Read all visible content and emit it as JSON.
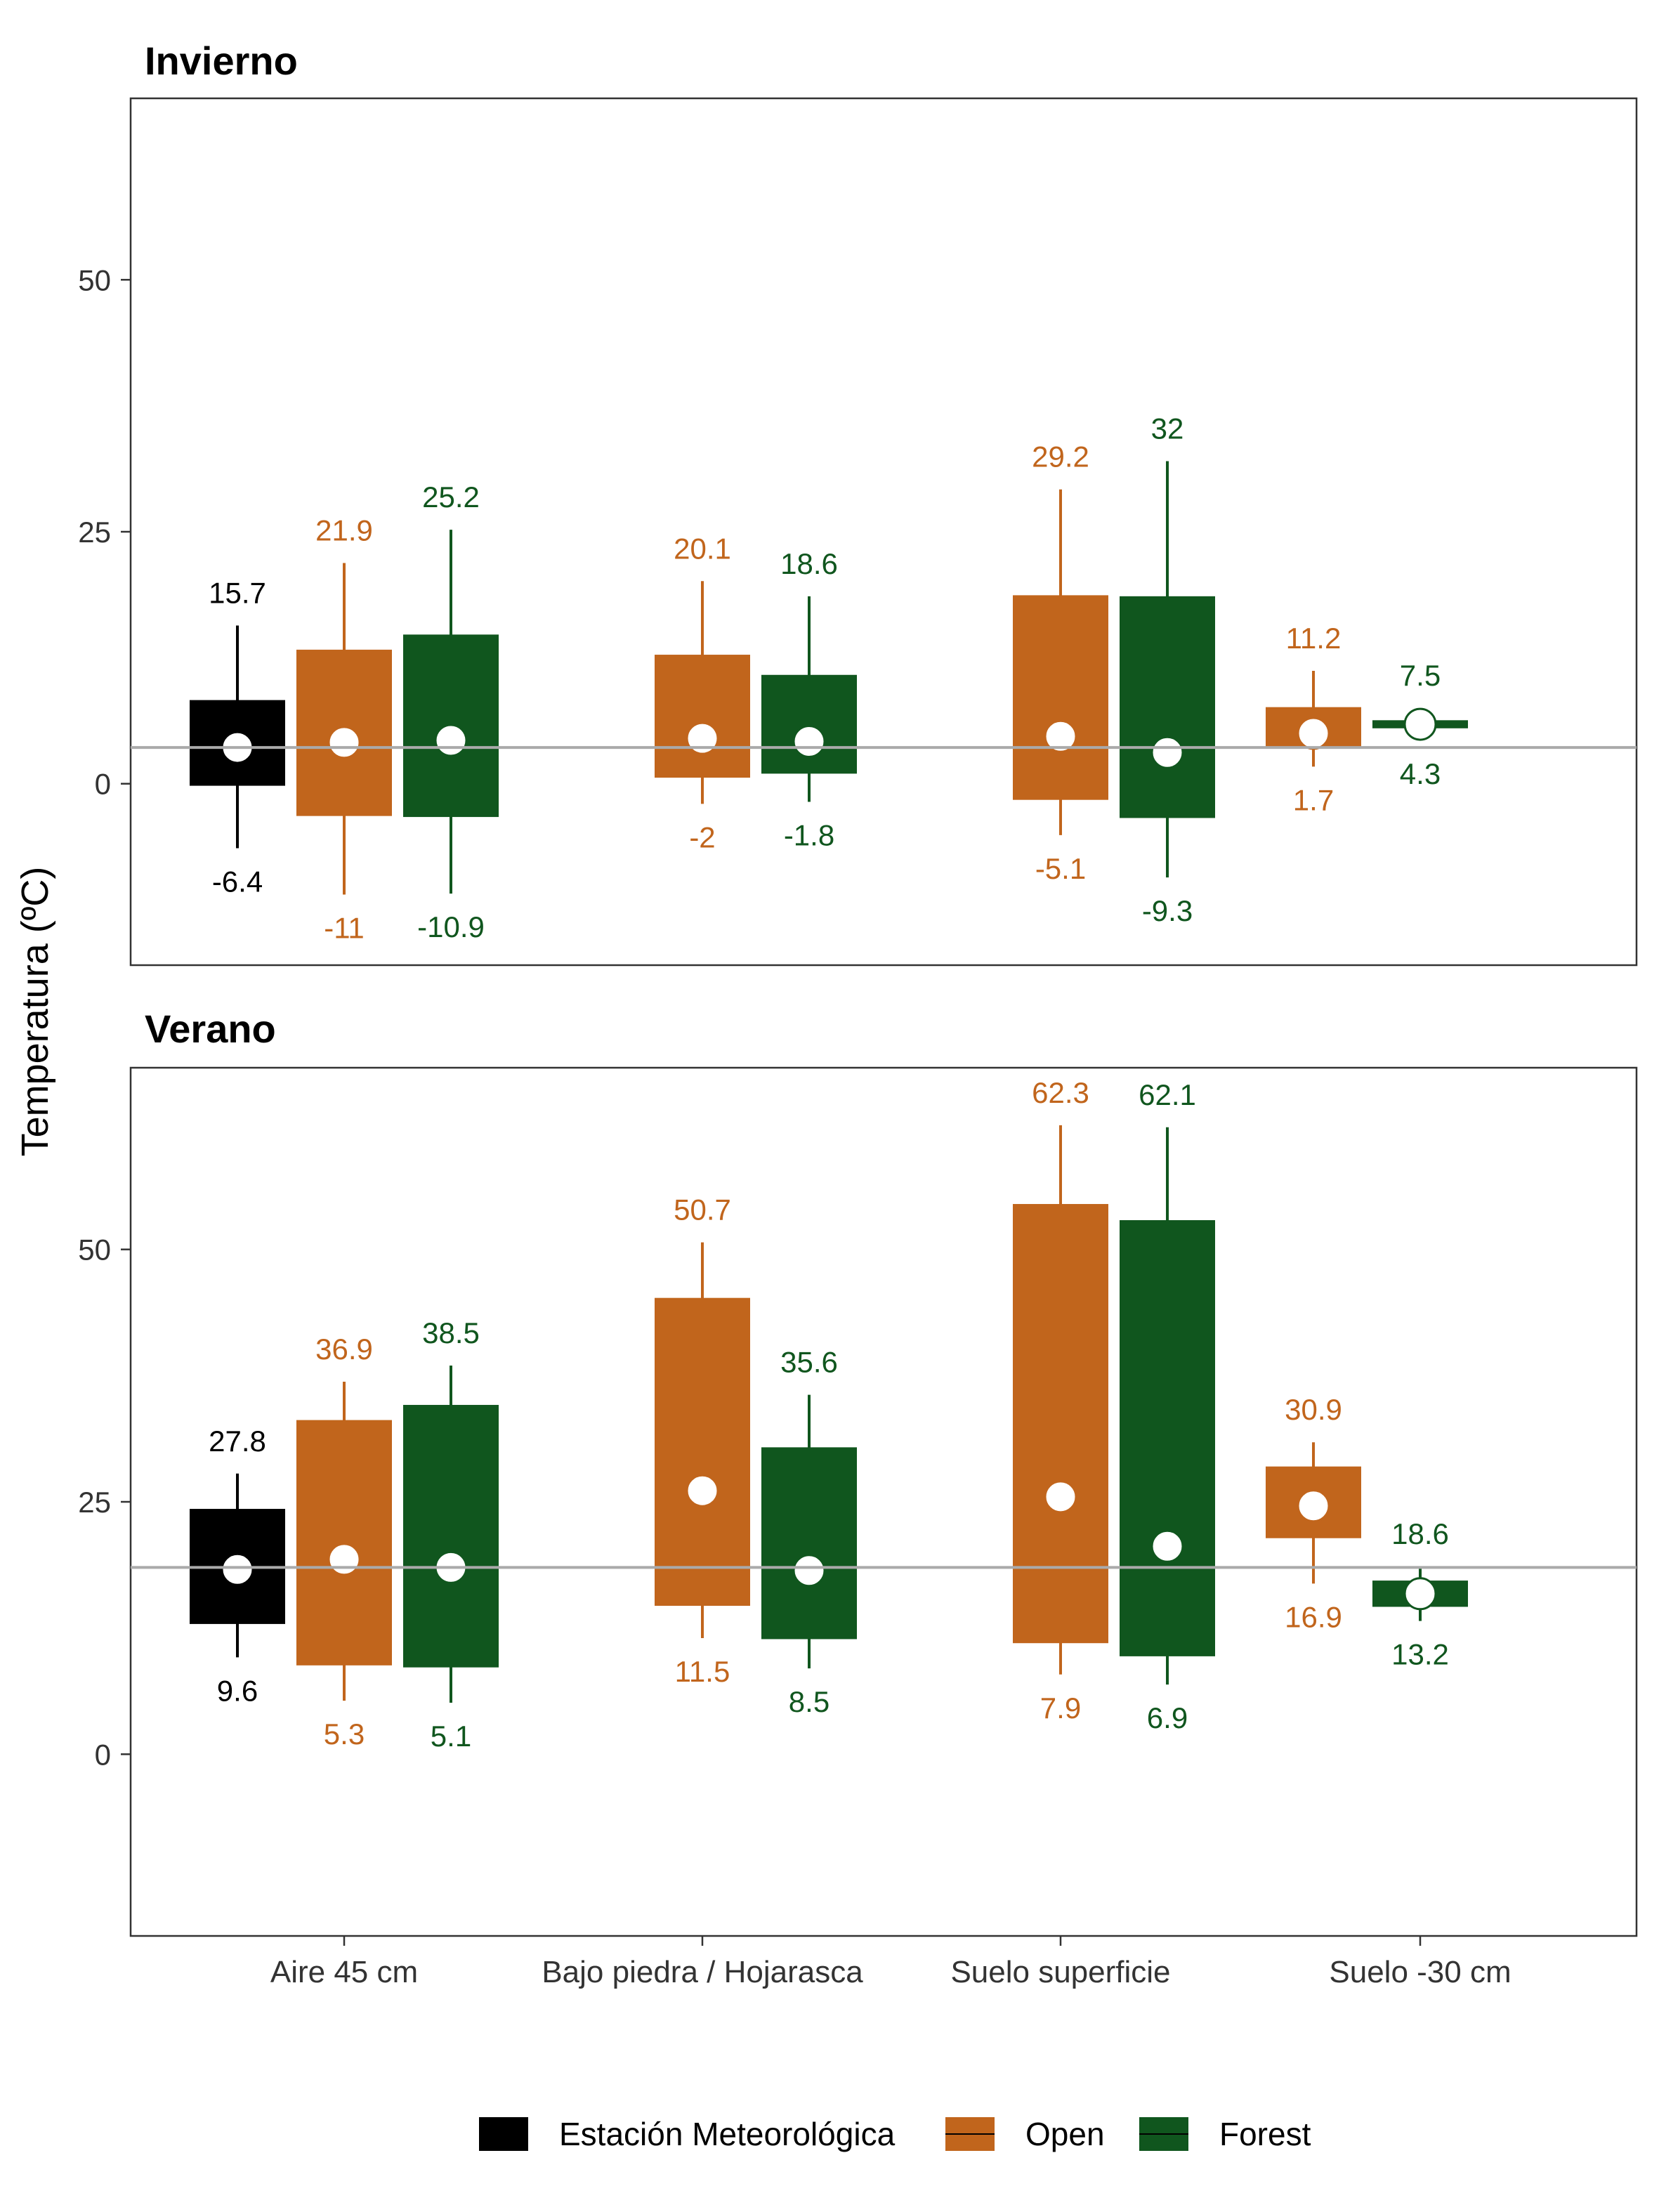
{
  "chart_data": {
    "type": "boxplot",
    "ylabel": "Temperatura (ºC)",
    "ylim": [
      -18,
      68
    ],
    "yticks": [
      0,
      25,
      50
    ],
    "categories": [
      "Aire 45 cm",
      "Bajo piedra / Hojarasca",
      "Suelo superficie",
      "Suelo -30 cm"
    ],
    "legend": {
      "position": "bottom",
      "entries": [
        {
          "name": "Estación Meteorológica",
          "color": "#000000"
        },
        {
          "name": "Open",
          "color": "#c1651c"
        },
        {
          "name": "Forest",
          "color": "#10561e"
        }
      ]
    },
    "panels": [
      {
        "title": "Invierno",
        "reference_line": 3.6,
        "groups": [
          {
            "category": "Aire 45 cm",
            "series": "Estación Meteorológica",
            "min": -6.4,
            "q1": -0.2,
            "median": 3.6,
            "q3": 8.3,
            "max": 15.7,
            "min_label": "-6.4",
            "max_label": "15.7"
          },
          {
            "category": "Aire 45 cm",
            "series": "Open",
            "min": -11,
            "q1": -3.2,
            "median": 4.1,
            "q3": 13.3,
            "max": 21.9,
            "min_label": "-11",
            "max_label": "21.9"
          },
          {
            "category": "Aire 45 cm",
            "series": "Forest",
            "min": -10.9,
            "q1": -3.3,
            "median": 4.3,
            "q3": 14.8,
            "max": 25.2,
            "min_label": "-10.9",
            "max_label": "25.2"
          },
          {
            "category": "Bajo piedra / Hojarasca",
            "series": "Open",
            "min": -2,
            "q1": 0.6,
            "median": 4.5,
            "q3": 12.8,
            "max": 20.1,
            "min_label": "-2",
            "max_label": "20.1"
          },
          {
            "category": "Bajo piedra / Hojarasca",
            "series": "Forest",
            "min": -1.8,
            "q1": 1.0,
            "median": 4.2,
            "q3": 10.8,
            "max": 18.6,
            "min_label": "-1.8",
            "max_label": "18.6"
          },
          {
            "category": "Suelo superficie",
            "series": "Open",
            "min": -5.1,
            "q1": -1.6,
            "median": 4.7,
            "q3": 18.7,
            "max": 29.2,
            "min_label": "-5.1",
            "max_label": "29.2"
          },
          {
            "category": "Suelo superficie",
            "series": "Forest",
            "min": -9.3,
            "q1": -3.4,
            "median": 3.1,
            "q3": 18.6,
            "max": 32,
            "min_label": "-9.3",
            "max_label": "32"
          },
          {
            "category": "Suelo -30 cm",
            "series": "Open",
            "min": 1.7,
            "q1": 3.6,
            "median": 5.0,
            "q3": 7.6,
            "max": 11.2,
            "min_label": "1.7",
            "max_label": "11.2"
          },
          {
            "category": "Suelo -30 cm",
            "series": "Forest",
            "min": 4.3,
            "q1": 5.5,
            "median": 5.9,
            "q3": 6.3,
            "max": 7.5,
            "min_label": "4.3",
            "max_label": "7.5"
          }
        ]
      },
      {
        "title": "Verano",
        "reference_line": 18.5,
        "groups": [
          {
            "category": "Aire 45 cm",
            "series": "Estación Meteorológica",
            "min": 9.6,
            "q1": 12.9,
            "median": 18.3,
            "q3": 24.3,
            "max": 27.8,
            "min_label": "9.6",
            "max_label": "27.8"
          },
          {
            "category": "Aire 45 cm",
            "series": "Open",
            "min": 5.3,
            "q1": 8.8,
            "median": 19.3,
            "q3": 33.1,
            "max": 36.9,
            "min_label": "5.3",
            "max_label": "36.9"
          },
          {
            "category": "Aire 45 cm",
            "series": "Forest",
            "min": 5.1,
            "q1": 8.6,
            "median": 18.5,
            "q3": 34.6,
            "max": 38.5,
            "min_label": "5.1",
            "max_label": "38.5"
          },
          {
            "category": "Bajo piedra / Hojarasca",
            "series": "Open",
            "min": 11.5,
            "q1": 14.7,
            "median": 26.1,
            "q3": 45.2,
            "max": 50.7,
            "min_label": "11.5",
            "max_label": "50.7"
          },
          {
            "category": "Bajo piedra / Hojarasca",
            "series": "Forest",
            "min": 8.5,
            "q1": 11.4,
            "median": 18.2,
            "q3": 30.4,
            "max": 35.6,
            "min_label": "8.5",
            "max_label": "35.6"
          },
          {
            "category": "Suelo superficie",
            "series": "Open",
            "min": 7.9,
            "q1": 11.0,
            "median": 25.5,
            "q3": 54.5,
            "max": 62.3,
            "min_label": "7.9",
            "max_label": "62.3"
          },
          {
            "category": "Suelo superficie",
            "series": "Forest",
            "min": 6.9,
            "q1": 9.7,
            "median": 20.6,
            "q3": 52.9,
            "max": 62.1,
            "min_label": "6.9",
            "max_label": "62.1"
          },
          {
            "category": "Suelo -30 cm",
            "series": "Open",
            "min": 16.9,
            "q1": 21.4,
            "median": 24.6,
            "q3": 28.5,
            "max": 30.9,
            "min_label": "16.9",
            "max_label": "30.9"
          },
          {
            "category": "Suelo -30 cm",
            "series": "Forest",
            "min": 13.2,
            "q1": 14.6,
            "median": 15.9,
            "q3": 17.2,
            "max": 18.6,
            "min_label": "13.2",
            "max_label": "18.6"
          }
        ]
      }
    ]
  }
}
